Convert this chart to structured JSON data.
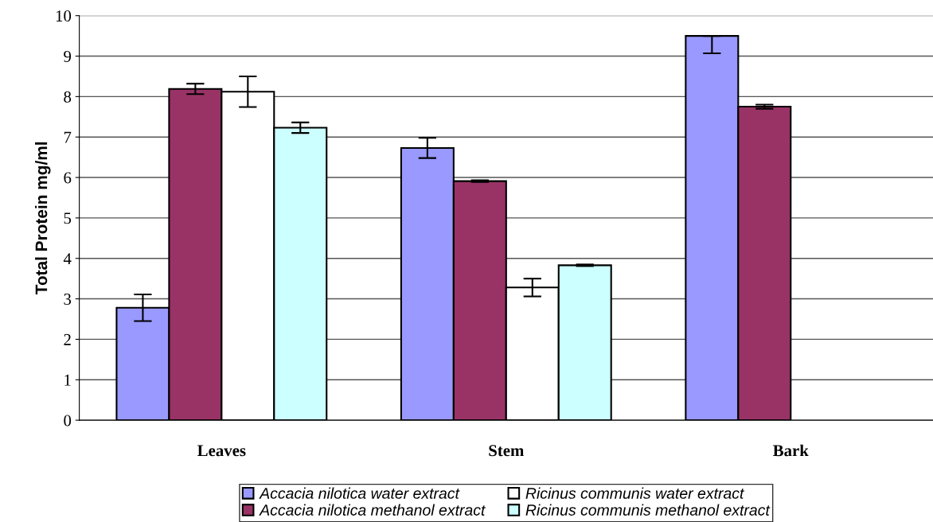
{
  "chart_data": {
    "type": "bar",
    "categories": [
      "Leaves",
      "Stem",
      "Bark"
    ],
    "ylabel": "Total Protein mg/ml",
    "ylim": [
      0,
      10
    ],
    "yticks": [
      0,
      1,
      2,
      3,
      4,
      5,
      6,
      7,
      8,
      9,
      10
    ],
    "grid": "y",
    "legend": "bottom",
    "series": [
      {
        "name": "Accacia nilotica water extract",
        "color": "#9999ff",
        "values": [
          2.78,
          6.73,
          9.5
        ],
        "errors": [
          0.33,
          0.25,
          [
            9.07,
            9.5
          ]
        ]
      },
      {
        "name": "Accacia nilotica methanol extract",
        "color": "#993366",
        "values": [
          8.19,
          5.91,
          7.75
        ],
        "errors": [
          0.13,
          0.02,
          0.05
        ]
      },
      {
        "name": "Ricinus communis water extract",
        "color": "#ffffff",
        "values": [
          8.12,
          3.28,
          null
        ],
        "errors": [
          0.38,
          0.22,
          null
        ]
      },
      {
        "name": "Ricinus communis methanol extract",
        "color": "#ccffff",
        "values": [
          7.23,
          3.83,
          null
        ],
        "errors": [
          0.13,
          0.02,
          null
        ]
      }
    ]
  }
}
